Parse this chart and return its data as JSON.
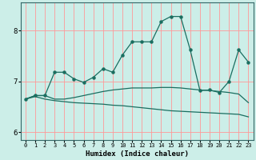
{
  "title": "",
  "xlabel": "Humidex (Indice chaleur)",
  "ylabel": "",
  "background_color": "#cceee8",
  "grid_color": "#ff9999",
  "line_color": "#1a6e60",
  "xlim": [
    -0.5,
    23.5
  ],
  "ylim": [
    5.85,
    8.55
  ],
  "yticks": [
    6,
    7,
    8
  ],
  "xticks": [
    0,
    1,
    2,
    3,
    4,
    5,
    6,
    7,
    8,
    9,
    10,
    11,
    12,
    13,
    14,
    15,
    16,
    17,
    18,
    19,
    20,
    21,
    22,
    23
  ],
  "line1_x": [
    0,
    1,
    2,
    3,
    4,
    5,
    6,
    7,
    8,
    9,
    10,
    11,
    12,
    13,
    14,
    15,
    16,
    17,
    18,
    19,
    20,
    21,
    22,
    23
  ],
  "line1_y": [
    6.65,
    6.72,
    6.72,
    7.18,
    7.18,
    7.05,
    6.98,
    7.08,
    7.25,
    7.18,
    7.52,
    7.78,
    7.78,
    7.78,
    8.18,
    8.28,
    8.28,
    7.62,
    6.82,
    6.83,
    6.78,
    7.0,
    7.62,
    7.38
  ],
  "line2_x": [
    0,
    1,
    2,
    3,
    4,
    5,
    6,
    7,
    8,
    9,
    10,
    11,
    12,
    13,
    14,
    15,
    16,
    17,
    18,
    19,
    20,
    21,
    22,
    23
  ],
  "line2_y": [
    6.65,
    6.72,
    6.72,
    6.65,
    6.65,
    6.68,
    6.72,
    6.76,
    6.8,
    6.83,
    6.85,
    6.87,
    6.87,
    6.87,
    6.88,
    6.88,
    6.87,
    6.85,
    6.83,
    6.82,
    6.8,
    6.78,
    6.75,
    6.58
  ],
  "line3_x": [
    0,
    1,
    2,
    3,
    4,
    5,
    6,
    7,
    8,
    9,
    10,
    11,
    12,
    13,
    14,
    15,
    16,
    17,
    18,
    19,
    20,
    21,
    22,
    23
  ],
  "line3_y": [
    6.65,
    6.7,
    6.65,
    6.62,
    6.6,
    6.58,
    6.57,
    6.56,
    6.55,
    6.53,
    6.52,
    6.5,
    6.48,
    6.46,
    6.44,
    6.42,
    6.41,
    6.4,
    6.39,
    6.38,
    6.37,
    6.36,
    6.35,
    6.3
  ]
}
